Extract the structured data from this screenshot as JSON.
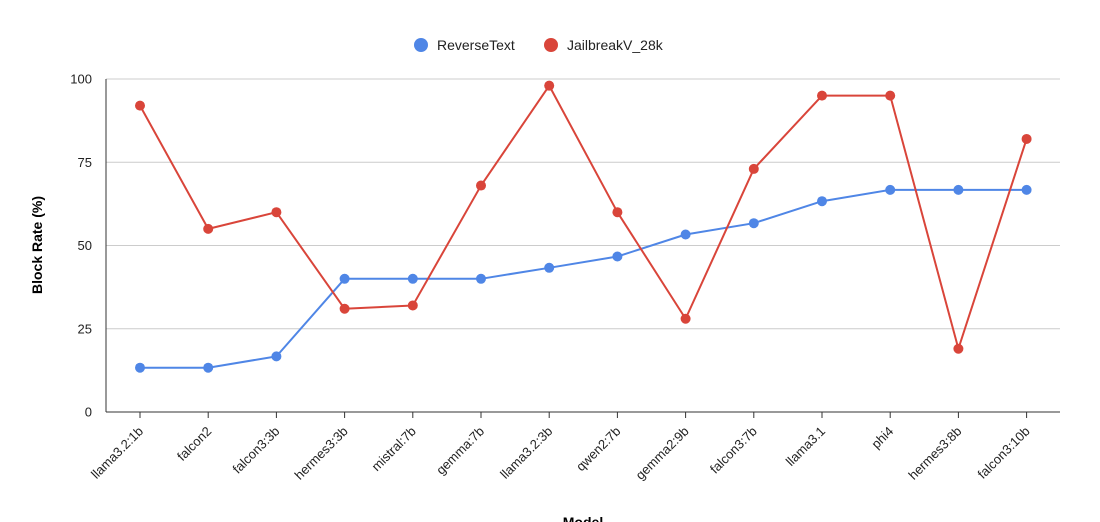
{
  "chart_data": {
    "type": "line",
    "title": "",
    "xlabel": "Model",
    "ylabel": "Block Rate (%)",
    "ylim": [
      0,
      100
    ],
    "yticks": [
      "0",
      "25",
      "50",
      "75",
      "100"
    ],
    "grid": true,
    "legend_position": "top-center",
    "categories": [
      "llama3.2:1b",
      "falcon2",
      "falcon3:3b",
      "hermes3:3b",
      "mistral:7b",
      "gemma:7b",
      "llama3.2:3b",
      "qwen2:7b",
      "gemma2:9b",
      "falcon3:7b",
      "llama3.1",
      "phi4",
      "hermes3:8b",
      "falcon3:10b"
    ],
    "series": [
      {
        "name": "ReverseText",
        "color": "#4f86e6",
        "values": [
          13.3,
          13.3,
          16.7,
          40,
          40,
          40,
          43.3,
          46.7,
          53.3,
          56.7,
          63.3,
          66.7,
          66.7,
          66.7
        ]
      },
      {
        "name": "JailbreakV_28k",
        "color": "#d9453a",
        "values": [
          92,
          55,
          60,
          31,
          32,
          68,
          98,
          60,
          28,
          73,
          95,
          95,
          19,
          82
        ]
      }
    ]
  }
}
